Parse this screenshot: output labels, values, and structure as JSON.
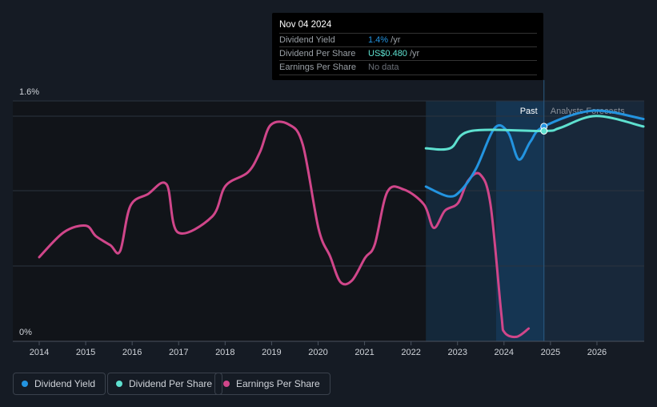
{
  "tooltip": {
    "date": "Nov 04 2024",
    "rows": [
      {
        "label": "Dividend Yield",
        "value": "1.4%",
        "unit": " /yr",
        "color": "#2394e0"
      },
      {
        "label": "Dividend Per Share",
        "value": "US$0.480",
        "unit": " /yr",
        "color": "#5ee0cf"
      },
      {
        "label": "Earnings Per Share",
        "value": "No data",
        "unit": "",
        "color": "#6b7078"
      }
    ]
  },
  "legend": [
    {
      "label": "Dividend Yield",
      "color": "#2394e0"
    },
    {
      "label": "Dividend Per Share",
      "color": "#5ee0cf"
    },
    {
      "label": "Earnings Per Share",
      "color": "#d0468a"
    }
  ],
  "chart_data": {
    "type": "line",
    "ylabel_top": "1.6%",
    "ylabel_bottom": "0%",
    "ylim": [
      0,
      1.6
    ],
    "xlim": [
      2013.95,
      2027
    ],
    "x_ticks": [
      "2014",
      "2015",
      "2016",
      "2017",
      "2018",
      "2019",
      "2020",
      "2021",
      "2022",
      "2023",
      "2024",
      "2025",
      "2026"
    ],
    "regions": {
      "past_label": "Past",
      "forecast_label": "Analysts Forecasts",
      "data_start": 2022.32,
      "today": 2024.86
    },
    "series": [
      {
        "name": "Earnings Per Share",
        "color": "#d0468a",
        "points": [
          [
            2014,
            0.56
          ],
          [
            2014.53,
            0.726
          ],
          [
            2015,
            0.77
          ],
          [
            2015.22,
            0.7
          ],
          [
            2015.53,
            0.64
          ],
          [
            2015.74,
            0.6
          ],
          [
            2015.96,
            0.9
          ],
          [
            2016.34,
            0.98
          ],
          [
            2016.74,
            1.045
          ],
          [
            2016.98,
            0.726
          ],
          [
            2017.72,
            0.83
          ],
          [
            2018.01,
            1.035
          ],
          [
            2018.49,
            1.125
          ],
          [
            2018.75,
            1.26
          ],
          [
            2018.98,
            1.44
          ],
          [
            2019.36,
            1.445
          ],
          [
            2019.67,
            1.31
          ],
          [
            2020.01,
            0.75
          ],
          [
            2020.26,
            0.565
          ],
          [
            2020.48,
            0.395
          ],
          [
            2020.73,
            0.405
          ],
          [
            2021.01,
            0.555
          ],
          [
            2021.22,
            0.645
          ],
          [
            2021.49,
            0.995
          ],
          [
            2021.85,
            1.01
          ],
          [
            2022.28,
            0.91
          ],
          [
            2022.49,
            0.755
          ],
          [
            2022.73,
            0.87
          ],
          [
            2023.01,
            0.92
          ],
          [
            2023.23,
            1.07
          ],
          [
            2023.49,
            1.11
          ],
          [
            2023.71,
            0.91
          ],
          [
            2023.94,
            0.19
          ],
          [
            2024.01,
            0.06
          ],
          [
            2024.27,
            0.03
          ],
          [
            2024.53,
            0.085
          ]
        ]
      },
      {
        "name": "Dividend Yield",
        "color": "#2394e0",
        "points": [
          [
            2022.32,
            1.03
          ],
          [
            2022.8,
            0.965
          ],
          [
            2023.06,
            1.0
          ],
          [
            2023.4,
            1.15
          ],
          [
            2023.8,
            1.42
          ],
          [
            2024.09,
            1.39
          ],
          [
            2024.32,
            1.21
          ],
          [
            2024.57,
            1.33
          ],
          [
            2024.86,
            1.43
          ],
          [
            2025.9,
            1.535
          ],
          [
            2027,
            1.48
          ]
        ]
      },
      {
        "name": "Dividend Per Share",
        "color": "#5ee0cf",
        "points": [
          [
            2022.32,
            1.285
          ],
          [
            2022.84,
            1.285
          ],
          [
            2023.29,
            1.4
          ],
          [
            2024.86,
            1.4
          ],
          [
            2025.2,
            1.42
          ],
          [
            2025.98,
            1.5
          ],
          [
            2027,
            1.43
          ]
        ]
      }
    ]
  }
}
